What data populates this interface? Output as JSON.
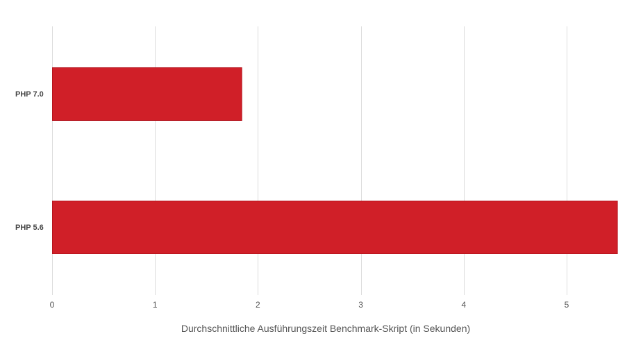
{
  "chart_data": {
    "type": "bar",
    "orientation": "horizontal",
    "categories": [
      "PHP 7.0",
      "PHP 5.6"
    ],
    "values": [
      1.84,
      5.49
    ],
    "title": "",
    "xlabel": "Durchschnittliche Ausführungszeit Benchmark-Skript (in Sekunden)",
    "ylabel": "",
    "xlim": [
      0,
      5.5
    ],
    "xticks": [
      "0",
      "1",
      "2",
      "3",
      "4",
      "5"
    ],
    "grid": "vertical",
    "legend": "none",
    "bar_color": "#d01f28",
    "bar_border_color": "#b5141d"
  }
}
